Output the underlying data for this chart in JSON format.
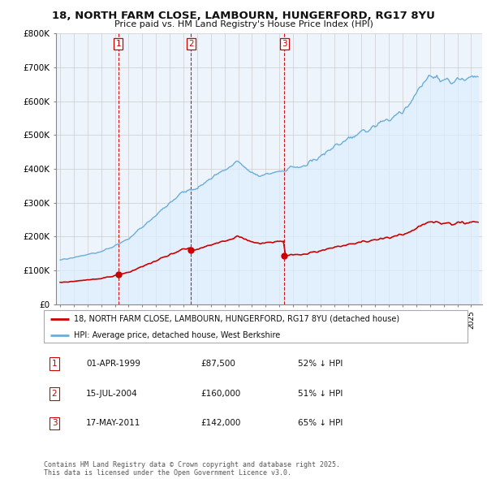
{
  "title": "18, NORTH FARM CLOSE, LAMBOURN, HUNGERFORD, RG17 8YU",
  "subtitle": "Price paid vs. HM Land Registry's House Price Index (HPI)",
  "ylim": [
    0,
    800000
  ],
  "yticks": [
    0,
    100000,
    200000,
    300000,
    400000,
    500000,
    600000,
    700000,
    800000
  ],
  "ytick_labels": [
    "£0",
    "£100K",
    "£200K",
    "£300K",
    "£400K",
    "£500K",
    "£600K",
    "£700K",
    "£800K"
  ],
  "hpi_color": "#6baed6",
  "hpi_fill_color": "#ddeeff",
  "price_color": "#cc0000",
  "vline_color": "#cc0000",
  "grid_color": "#cccccc",
  "background_color": "#ffffff",
  "chart_bg_color": "#eef4fb",
  "transactions": [
    {
      "date_num": 1999.25,
      "price": 87500,
      "label": "1"
    },
    {
      "date_num": 2004.54,
      "price": 160000,
      "label": "2"
    },
    {
      "date_num": 2011.37,
      "price": 142000,
      "label": "3"
    }
  ],
  "legend_entries": [
    "18, NORTH FARM CLOSE, LAMBOURN, HUNGERFORD, RG17 8YU (detached house)",
    "HPI: Average price, detached house, West Berkshire"
  ],
  "table_data": [
    {
      "num": "1",
      "date": "01-APR-1999",
      "price": "£87,500",
      "hpi": "52% ↓ HPI"
    },
    {
      "num": "2",
      "date": "15-JUL-2004",
      "price": "£160,000",
      "hpi": "51% ↓ HPI"
    },
    {
      "num": "3",
      "date": "17-MAY-2011",
      "price": "£142,000",
      "hpi": "65% ↓ HPI"
    }
  ],
  "footer": "Contains HM Land Registry data © Crown copyright and database right 2025.\nThis data is licensed under the Open Government Licence v3.0."
}
